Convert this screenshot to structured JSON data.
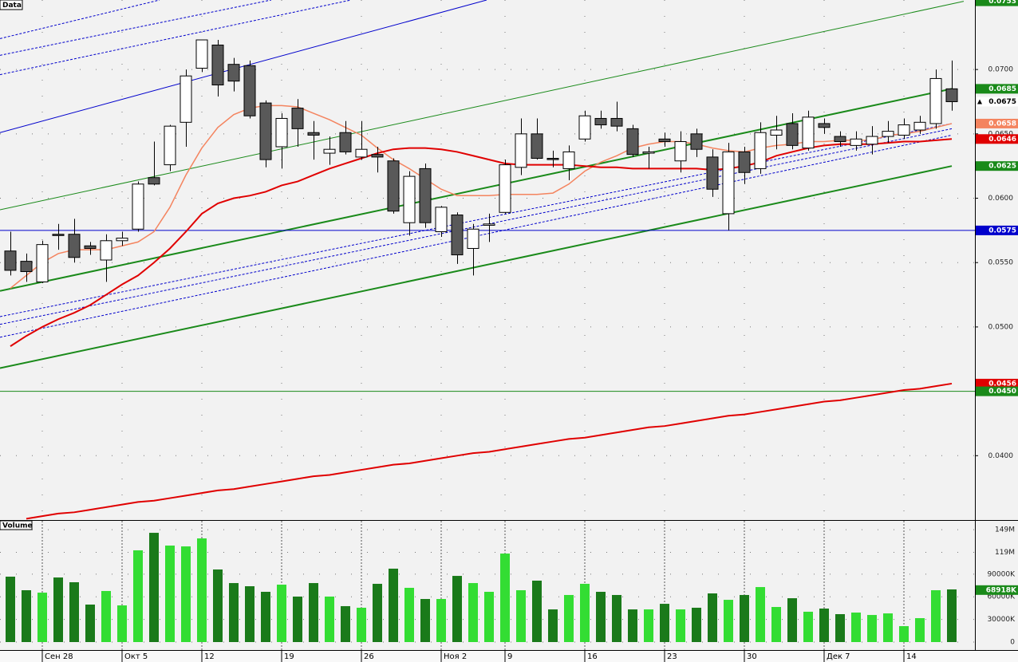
{
  "chart_data": [
    {
      "type": "candlestick",
      "title": "Data",
      "categories": [
        null,
        null,
        "Сен 28",
        null,
        null,
        null,
        null,
        "Окт 5",
        null,
        null,
        null,
        null,
        "12",
        null,
        null,
        null,
        null,
        "19",
        null,
        null,
        null,
        null,
        "26",
        null,
        null,
        null,
        null,
        "Ноя 2",
        null,
        null,
        null,
        "9",
        null,
        null,
        null,
        null,
        "16",
        null,
        null,
        null,
        null,
        "23",
        null,
        null,
        null,
        null,
        "30",
        null,
        null,
        null,
        null,
        "Дек 7",
        null,
        null,
        null,
        null,
        "14",
        null,
        null,
        null
      ],
      "open": [
        0.0559,
        0.0551,
        0.0535,
        0.0572,
        0.0572,
        0.0563,
        0.0552,
        0.0567,
        0.0576,
        0.0616,
        0.0626,
        0.0659,
        0.0701,
        0.0719,
        0.0704,
        0.0703,
        0.0674,
        0.064,
        0.067,
        0.0651,
        0.0635,
        0.0651,
        0.0632,
        0.0634,
        0.0629,
        0.0581,
        0.0623,
        0.0574,
        0.0587,
        0.0561,
        0.0579,
        0.0589,
        0.0624,
        0.065,
        0.0631,
        0.0623,
        0.0646,
        0.0662,
        0.0662,
        0.0654,
        0.0635,
        0.0646,
        0.0629,
        0.065,
        0.0632,
        0.0588,
        0.0636,
        0.0623,
        0.0649,
        0.0658,
        0.0639,
        0.0658,
        0.0648,
        0.0641,
        0.0642,
        0.0648,
        0.0649,
        0.0653,
        0.0658,
        0.0685
      ],
      "high": [
        0.0574,
        0.0557,
        0.0567,
        0.058,
        0.0584,
        0.0566,
        0.0572,
        0.0574,
        0.0613,
        0.0644,
        0.0657,
        0.07,
        0.0723,
        0.0723,
        0.0709,
        0.0707,
        0.0676,
        0.0666,
        0.0677,
        0.066,
        0.0648,
        0.066,
        0.066,
        0.064,
        0.0631,
        0.0621,
        0.0627,
        0.0594,
        0.0589,
        0.058,
        0.0588,
        0.063,
        0.0662,
        0.0662,
        0.0637,
        0.0641,
        0.0668,
        0.0668,
        0.0675,
        0.0657,
        0.064,
        0.0651,
        0.0652,
        0.0654,
        0.0638,
        0.0643,
        0.064,
        0.0659,
        0.0664,
        0.0666,
        0.0668,
        0.0662,
        0.0652,
        0.0652,
        0.0656,
        0.066,
        0.0662,
        0.0664,
        0.07,
        0.0707
      ],
      "low": [
        0.054,
        0.0535,
        0.0534,
        0.056,
        0.055,
        0.0556,
        0.0535,
        0.0563,
        0.0574,
        0.061,
        0.0621,
        0.064,
        0.0698,
        0.0679,
        0.0683,
        0.0662,
        0.0624,
        0.0623,
        0.064,
        0.063,
        0.0626,
        0.0634,
        0.063,
        0.062,
        0.0588,
        0.0571,
        0.0577,
        0.057,
        0.0549,
        0.054,
        0.0566,
        0.0588,
        0.0618,
        0.063,
        0.0624,
        0.0614,
        0.0644,
        0.0654,
        0.0652,
        0.0632,
        0.0623,
        0.064,
        0.062,
        0.0632,
        0.0601,
        0.0575,
        0.0611,
        0.0619,
        0.0638,
        0.0638,
        0.0637,
        0.065,
        0.064,
        0.0637,
        0.0634,
        0.0643,
        0.0646,
        0.065,
        0.0654,
        0.0668
      ],
      "close": [
        0.0544,
        0.0543,
        0.0564,
        0.0571,
        0.0554,
        0.0561,
        0.0567,
        0.0569,
        0.0611,
        0.0611,
        0.0656,
        0.0695,
        0.0723,
        0.0688,
        0.0691,
        0.0664,
        0.063,
        0.0662,
        0.0654,
        0.0649,
        0.0638,
        0.0636,
        0.0638,
        0.0632,
        0.059,
        0.0617,
        0.0581,
        0.0593,
        0.0556,
        0.0576,
        0.058,
        0.0626,
        0.065,
        0.0631,
        0.063,
        0.0636,
        0.0664,
        0.0657,
        0.0656,
        0.0634,
        0.0636,
        0.0644,
        0.0644,
        0.0638,
        0.0607,
        0.0636,
        0.062,
        0.0651,
        0.0653,
        0.0641,
        0.0663,
        0.0655,
        0.0644,
        0.0646,
        0.0648,
        0.0652,
        0.0657,
        0.0659,
        0.0693,
        0.0675
      ],
      "up_color": "#ffffff",
      "down_color": "#595959",
      "overlays": [
        {
          "color": "#f4845f",
          "width": 1.5,
          "values": [
            0.053,
            0.054,
            0.055,
            0.0557,
            0.056,
            0.056,
            0.056,
            0.0563,
            0.0566,
            0.0574,
            0.0593,
            0.0618,
            0.0639,
            0.0655,
            0.0665,
            0.067,
            0.0672,
            0.0672,
            0.0671,
            0.0666,
            0.0661,
            0.0655,
            0.0649,
            0.0639,
            0.063,
            0.0623,
            0.0615,
            0.0607,
            0.0602,
            0.0602,
            0.0602,
            0.0603,
            0.0603,
            0.0603,
            0.0604,
            0.0611,
            0.0621,
            0.0628,
            0.0633,
            0.0639,
            0.0642,
            0.0644,
            0.0644,
            0.0642,
            0.0639,
            0.0637,
            0.0636,
            0.0639,
            0.0641,
            0.0642,
            0.0644,
            0.0644,
            0.0645,
            0.0645,
            0.0645,
            0.0649,
            0.065,
            0.0652,
            0.0655,
            0.0658
          ]
        },
        {
          "color": "#e00000",
          "width": 2,
          "values": [
            0.0485,
            0.0493,
            0.05,
            0.0506,
            0.0511,
            0.0517,
            0.0525,
            0.0533,
            0.054,
            0.055,
            0.0561,
            0.0574,
            0.0588,
            0.0596,
            0.06,
            0.0602,
            0.0605,
            0.061,
            0.0613,
            0.0618,
            0.0623,
            0.0627,
            0.0631,
            0.0635,
            0.0638,
            0.0639,
            0.0639,
            0.0638,
            0.0636,
            0.0633,
            0.063,
            0.0627,
            0.0626,
            0.0626,
            0.0626,
            0.0626,
            0.0625,
            0.0624,
            0.0624,
            0.0623,
            0.0623,
            0.0623,
            0.0623,
            0.0623,
            0.0622,
            0.0623,
            0.0625,
            0.0628,
            0.0633,
            0.0636,
            0.0639,
            0.0641,
            0.0642,
            0.0642,
            0.0642,
            0.0643,
            0.0644,
            0.0644,
            0.0645,
            0.0646
          ]
        },
        {
          "color": "#e00000",
          "width": 2,
          "values": [
            null,
            0.0351,
            0.0353,
            0.0355,
            0.0356,
            0.0358,
            0.036,
            0.0362,
            0.0364,
            0.0365,
            0.0367,
            0.0369,
            0.0371,
            0.0373,
            0.0374,
            0.0376,
            0.0378,
            0.038,
            0.0382,
            0.0384,
            0.0385,
            0.0387,
            0.0389,
            0.0391,
            0.0393,
            0.0394,
            0.0396,
            0.0398,
            0.04,
            0.0402,
            0.0403,
            0.0405,
            0.0407,
            0.0409,
            0.0411,
            0.0413,
            0.0414,
            0.0416,
            0.0418,
            0.042,
            0.0422,
            0.0423,
            0.0425,
            0.0427,
            0.0429,
            0.0431,
            0.0432,
            0.0434,
            0.0436,
            0.0438,
            0.044,
            0.0442,
            0.0443,
            0.0445,
            0.0447,
            0.0449,
            0.0451,
            0.0452,
            0.0454,
            0.0456
          ]
        }
      ],
      "trend_lines": [
        {
          "color": "#1a8a1a",
          "width": 2,
          "dashed": false,
          "x": [
            -0.65,
            59
          ],
          "values": [
            0.0528,
            0.0685
          ]
        },
        {
          "color": "#1a8a1a",
          "width": 2,
          "dashed": false,
          "x": [
            -0.65,
            59
          ],
          "values": [
            0.0468,
            0.0625
          ]
        },
        {
          "color": "#1a8a1a",
          "width": 1,
          "dashed": false,
          "x": [
            -0.65,
            59.75
          ],
          "values": [
            0.0591,
            0.0753
          ]
        },
        {
          "color": "#0000cc",
          "width": 1,
          "dashed": false,
          "x": [
            -0.65,
            29.85
          ],
          "values": [
            0.0651,
            0.0754
          ]
        },
        {
          "color": "#0000cc",
          "width": 1,
          "dashed": true,
          "x": [
            -0.65,
            59
          ],
          "values": [
            0.0508,
            0.0658
          ]
        },
        {
          "color": "#0000cc",
          "width": 1,
          "dashed": true,
          "x": [
            -0.65,
            59
          ],
          "values": [
            0.0502,
            0.0654
          ]
        },
        {
          "color": "#0000cc",
          "width": 1,
          "dashed": true,
          "x": [
            -0.65,
            59
          ],
          "values": [
            0.0492,
            0.0649
          ]
        },
        {
          "color": "#0000cc",
          "width": 1,
          "dashed": true,
          "x": [
            -0.65,
            9.35
          ],
          "values": [
            0.0724,
            0.0754
          ]
        },
        {
          "color": "#0000cc",
          "width": 1,
          "dashed": true,
          "x": [
            -0.65,
            16.35
          ],
          "values": [
            0.0711,
            0.0754
          ]
        },
        {
          "color": "#0000cc",
          "width": 1,
          "dashed": true,
          "x": [
            -0.65,
            21.35
          ],
          "values": [
            0.0696,
            0.0754
          ]
        }
      ],
      "price_markers": [
        {
          "value": 0.0753,
          "label": "0.0753",
          "color": "#1a8a1a"
        },
        {
          "value": 0.0685,
          "label": "0.0685",
          "color": "#1a8a1a"
        },
        {
          "value": 0.0675,
          "label": "0.0675",
          "color": "#ffffff",
          "text_color": "#000000",
          "arrow": true
        },
        {
          "value": 0.0658,
          "label": "0.0658",
          "color": "#f4845f"
        },
        {
          "value": 0.0646,
          "label": "0.0646",
          "color": "#e00000"
        },
        {
          "value": 0.0625,
          "label": "0.0625",
          "color": "#1a8a1a"
        },
        {
          "value": 0.0575,
          "label": "0.0575",
          "color": "#0000cc",
          "line": true
        },
        {
          "value": 0.0456,
          "label": "0.0456",
          "color": "#e00000"
        },
        {
          "value": 0.045,
          "label": "0.0450",
          "color": "#1a8a1a",
          "line": true
        }
      ],
      "ylim": [
        0.035,
        0.0754
      ],
      "yticks": [
        {
          "value": 0.04,
          "label": "0.0400"
        },
        {
          "value": 0.05,
          "label": "0.0500"
        },
        {
          "value": 0.055,
          "label": "0.0550"
        },
        {
          "value": 0.06,
          "label": "0.0600"
        },
        {
          "value": 0.065,
          "label": "0.0650"
        },
        {
          "value": 0.07,
          "label": "0.0700"
        }
      ],
      "grid": true
    },
    {
      "type": "bar",
      "title": "Volume",
      "values": [
        86700000,
        68700000,
        65500000,
        85600000,
        79300000,
        49700000,
        67700000,
        48600000,
        121600000,
        144800000,
        127900000,
        126800000,
        137400000,
        96200000,
        78200000,
        74000000,
        66600000,
        76100000,
        60300000,
        78200000,
        60300000,
        47600000,
        45500000,
        77200000,
        97300000,
        71900000,
        57100000,
        57100000,
        87700000,
        78200000,
        66600000,
        117300000,
        68700000,
        81400000,
        43300000,
        62400000,
        77200000,
        66600000,
        62400000,
        43300000,
        43300000,
        50700000,
        43300000,
        45500000,
        64500000,
        56000000,
        62400000,
        72900000,
        46500000,
        58100000,
        40200000,
        44400000,
        37000000,
        39100000,
        35900000,
        38000000,
        21100000,
        31700000,
        68700000,
        69800000
      ],
      "up_color": "#33dd33",
      "down_color": "#1a7a1a",
      "markers": [
        {
          "value": 68918000,
          "label": "68918K",
          "color": "#1a8a1a"
        }
      ],
      "ylim": [
        0,
        160700000
      ],
      "yticks": [
        0,
        {
          "value": 30000000,
          "label": "30000K"
        },
        {
          "value": 60000000,
          "label": "60000K"
        },
        {
          "value": 90000000,
          "label": "90000K"
        },
        {
          "value": 119000000,
          "label": "119M"
        },
        {
          "value": 149000000,
          "label": "149M"
        }
      ],
      "grid": true
    }
  ]
}
